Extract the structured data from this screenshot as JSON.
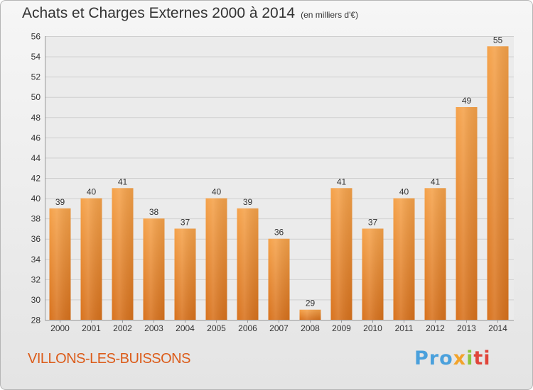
{
  "header": {
    "title": "Achats et Charges Externes 2000 à 2014",
    "subtitle": "(en milliers d'€)"
  },
  "footer": {
    "commune": "VILLONS-LES-BUISSONS",
    "logo": [
      "Pro",
      "x",
      "i",
      "ti"
    ]
  },
  "chart_data": {
    "type": "bar",
    "title": "Achats et Charges Externes 2000 à 2014",
    "subtitle": "(en milliers d'€)",
    "xlabel": "",
    "ylabel": "",
    "categories": [
      "2000",
      "2001",
      "2002",
      "2003",
      "2004",
      "2005",
      "2006",
      "2007",
      "2008",
      "2009",
      "2010",
      "2011",
      "2012",
      "2013",
      "2014"
    ],
    "values": [
      39,
      40,
      41,
      38,
      37,
      40,
      39,
      36,
      29,
      41,
      37,
      40,
      41,
      49,
      55
    ],
    "ylim": [
      28,
      56
    ],
    "yticks": [
      28,
      30,
      32,
      34,
      36,
      38,
      40,
      42,
      44,
      46,
      48,
      50,
      52,
      54,
      56
    ],
    "grid": true,
    "bar_color": "#f0922e",
    "bar_color_dark": "#d9741c",
    "legend": "none"
  }
}
